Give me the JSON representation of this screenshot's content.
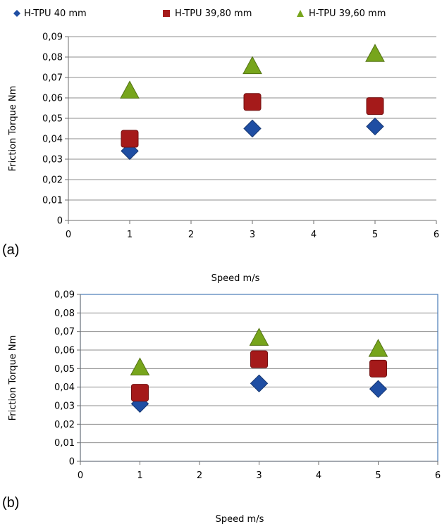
{
  "legend": [
    {
      "label": "H-TPU 40 mm",
      "marker": "diamond",
      "color": "#1f4ea3"
    },
    {
      "label": "H-TPU 39,80 mm",
      "marker": "square",
      "color": "#a51a1a"
    },
    {
      "label": "H-TPU 39,60 mm",
      "marker": "triangle",
      "color": "#77a51c"
    }
  ],
  "chart_data": [
    {
      "type": "scatter",
      "panel_label": "(a)",
      "xlabel": "Speed m/s",
      "ylabel": "Friction Torque Nm",
      "xlim": [
        0,
        6
      ],
      "ylim": [
        0,
        0.09
      ],
      "x_ticks": [
        "0",
        "1",
        "2",
        "3",
        "4",
        "5",
        "6"
      ],
      "y_ticks": [
        "0",
        "0,01",
        "0,02",
        "0,03",
        "0,04",
        "0,05",
        "0,06",
        "0,07",
        "0,08",
        "0,09"
      ],
      "grid": "horizontal",
      "plot_border": false,
      "series": [
        {
          "name": "H-TPU 40 mm",
          "marker": "diamond",
          "color": "#1f4ea3",
          "x": [
            1,
            3,
            5
          ],
          "y": [
            0.034,
            0.045,
            0.046
          ]
        },
        {
          "name": "H-TPU 39,80 mm",
          "marker": "square",
          "color": "#a51a1a",
          "x": [
            1,
            3,
            5
          ],
          "y": [
            0.04,
            0.058,
            0.056
          ]
        },
        {
          "name": "H-TPU 39,60 mm",
          "marker": "triangle",
          "color": "#77a51c",
          "x": [
            1,
            3,
            5
          ],
          "y": [
            0.063,
            0.075,
            0.081
          ]
        }
      ]
    },
    {
      "type": "scatter",
      "panel_label": "(b)",
      "xlabel": "Speed m/s",
      "ylabel": "Friction Torque Nm",
      "xlim": [
        0,
        6
      ],
      "ylim": [
        0,
        0.09
      ],
      "x_ticks": [
        "0",
        "1",
        "2",
        "3",
        "4",
        "5",
        "6"
      ],
      "y_ticks": [
        "0",
        "0,01",
        "0,02",
        "0,03",
        "0,04",
        "0,05",
        "0,06",
        "0,07",
        "0,08",
        "0,09"
      ],
      "grid": "horizontal",
      "plot_border": true,
      "series": [
        {
          "name": "H-TPU 40 mm",
          "marker": "diamond",
          "color": "#1f4ea3",
          "x": [
            1,
            3,
            5
          ],
          "y": [
            0.031,
            0.042,
            0.039
          ]
        },
        {
          "name": "H-TPU 39,80 mm",
          "marker": "square",
          "color": "#a51a1a",
          "x": [
            1,
            3,
            5
          ],
          "y": [
            0.037,
            0.055,
            0.05
          ]
        },
        {
          "name": "H-TPU 39,60 mm",
          "marker": "triangle",
          "color": "#77a51c",
          "x": [
            1,
            3,
            5
          ],
          "y": [
            0.05,
            0.066,
            0.06
          ]
        }
      ]
    }
  ]
}
